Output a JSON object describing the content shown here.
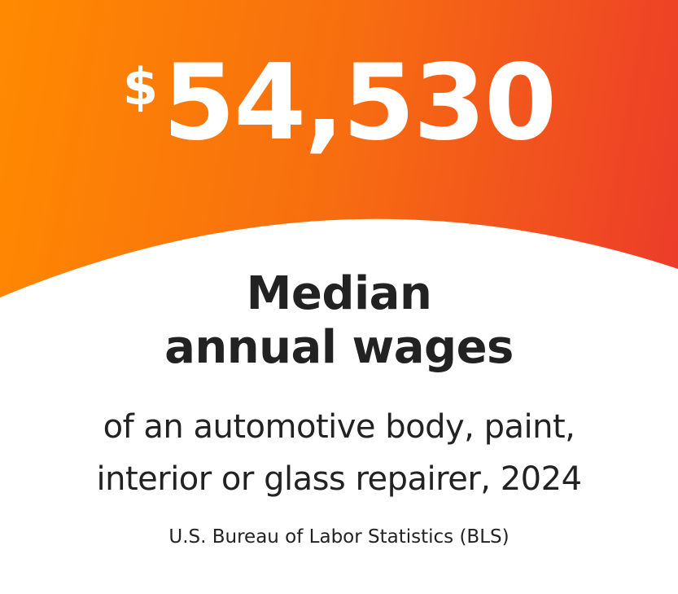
{
  "stat": {
    "currency": "$",
    "value": "54,530"
  },
  "title": {
    "line1": "Median",
    "line2": "annual wages"
  },
  "subtitle": {
    "line1": "of an automotive body, paint,",
    "line2": "interior or glass repairer, 2024"
  },
  "source": "U.S. Bureau of Labor Statistics (BLS)",
  "colors": {
    "gradient_start": "#ff8a00",
    "gradient_end": "#ec3b2a",
    "text": "#222222"
  }
}
